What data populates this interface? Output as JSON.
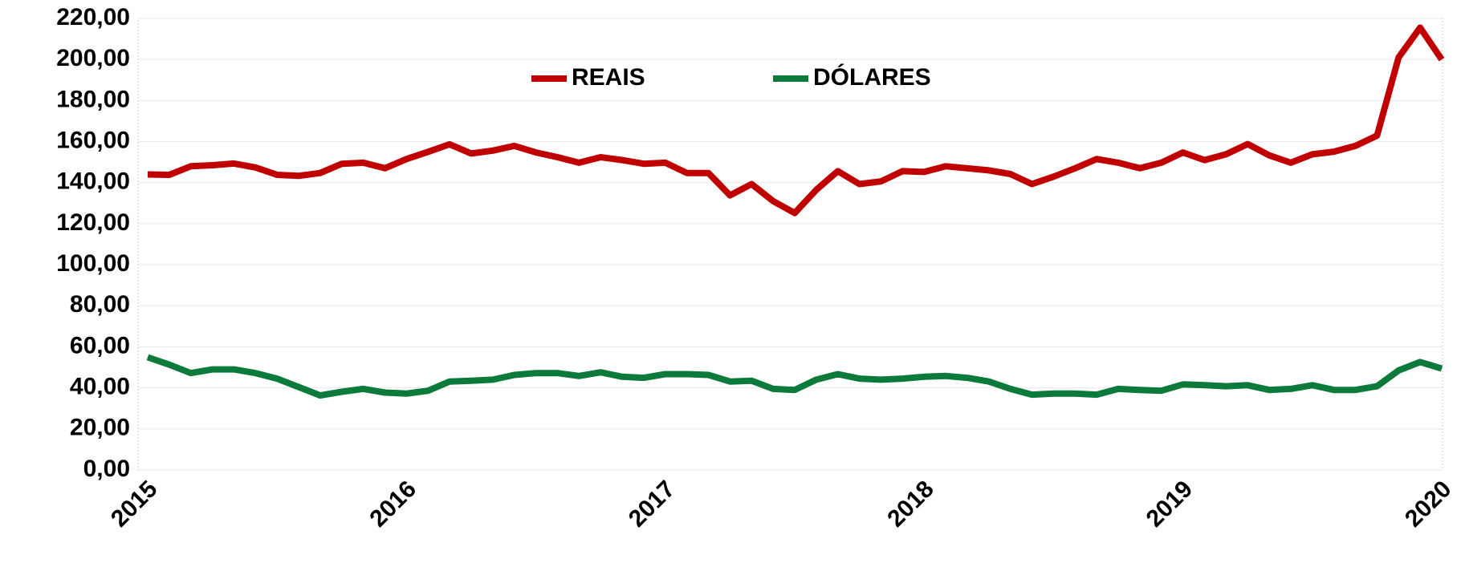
{
  "chart_data": {
    "type": "line",
    "categories": [
      "2015",
      null,
      null,
      null,
      null,
      null,
      null,
      null,
      null,
      null,
      null,
      null,
      "2016",
      null,
      null,
      null,
      null,
      null,
      null,
      null,
      null,
      null,
      null,
      null,
      "2017",
      null,
      null,
      null,
      null,
      null,
      null,
      null,
      null,
      null,
      null,
      null,
      "2018",
      null,
      null,
      null,
      null,
      null,
      null,
      null,
      null,
      null,
      null,
      null,
      "2019",
      null,
      null,
      null,
      null,
      null,
      null,
      null,
      null,
      null,
      null,
      null,
      "2020"
    ],
    "series": [
      {
        "name": "REAIS",
        "color": "#c00000",
        "values": [
          144,
          143.8,
          148,
          148.5,
          149.3,
          147.4,
          143.8,
          143.3,
          144.7,
          149.2,
          149.7,
          147,
          151.5,
          155,
          158.7,
          154.2,
          155.6,
          157.9,
          154.7,
          152.4,
          149.7,
          152.4,
          151,
          149.2,
          149.7,
          144.7,
          144.7,
          133.8,
          139.3,
          131,
          125.2,
          136.5,
          145.6,
          139.3,
          140.6,
          145.6,
          145.2,
          148,
          147,
          146,
          144.2,
          139.3,
          142.9,
          147,
          151.5,
          149.7,
          147,
          149.7,
          154.7,
          151,
          153.8,
          158.8,
          153.3,
          149.7,
          153.8,
          155.1,
          157.9,
          162.9,
          201,
          215.5,
          200
        ]
      },
      {
        "name": "DÓLARES",
        "color": "#0b7a3a",
        "values": [
          54.9,
          51.3,
          47.2,
          49,
          49,
          47.2,
          44.5,
          40.4,
          36.3,
          38.1,
          39.5,
          37.7,
          37.2,
          38.6,
          43.1,
          43.5,
          44,
          46.3,
          47.2,
          47.2,
          45.8,
          47.6,
          45.4,
          44.9,
          46.7,
          46.7,
          46.3,
          43.1,
          43.5,
          39.5,
          39,
          44,
          46.7,
          44.5,
          44,
          44.5,
          45.4,
          45.8,
          44.9,
          43.1,
          39.5,
          36.7,
          37.2,
          37.2,
          36.7,
          39.5,
          39,
          38.6,
          41.7,
          41.3,
          40.8,
          41.3,
          39,
          39.5,
          41.3,
          39,
          39,
          40.8,
          48.5,
          52.6,
          49.4
        ]
      }
    ],
    "ylim": [
      0,
      220
    ],
    "yticks": [
      {
        "value": 0,
        "label": "0,00"
      },
      {
        "value": 20,
        "label": "20,00"
      },
      {
        "value": 40,
        "label": "40,00"
      },
      {
        "value": 60,
        "label": "60,00"
      },
      {
        "value": 80,
        "label": "80,00"
      },
      {
        "value": 100,
        "label": "100,00"
      },
      {
        "value": 120,
        "label": "120,00"
      },
      {
        "value": 140,
        "label": "140,00"
      },
      {
        "value": 160,
        "label": "160,00"
      },
      {
        "value": 180,
        "label": "180,00"
      },
      {
        "value": 200,
        "label": "200,00"
      },
      {
        "value": 220,
        "label": "220,00"
      }
    ],
    "grid": true,
    "legend": "top"
  }
}
